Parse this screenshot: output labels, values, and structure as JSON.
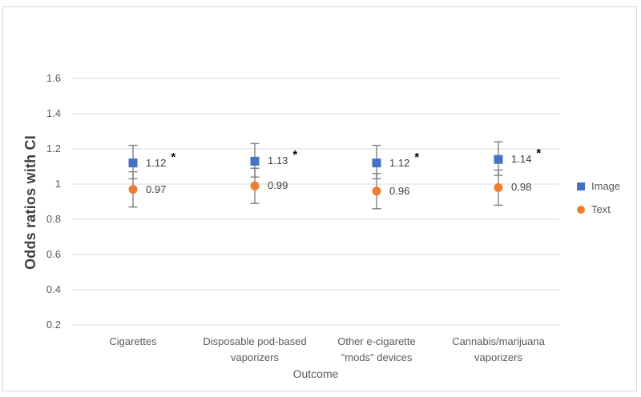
{
  "chart_data": {
    "type": "scatter",
    "title": "",
    "xlabel": "Outcome",
    "ylabel": "Odds ratios with CI",
    "categories": [
      "Cigarettes",
      "Disposable pod-based\nvaporizers",
      "Other e-cigarette\n\"mods\" devices",
      "Cannabis/marijuana\nvaporizers"
    ],
    "y_ticks": [
      {
        "label": "1.6",
        "value": 1.6
      },
      {
        "label": "1.4",
        "value": 1.4
      },
      {
        "label": "1.2",
        "value": 1.2
      },
      {
        "label": "1",
        "value": 1.0
      },
      {
        "label": "0.8",
        "value": 0.8
      },
      {
        "label": "0.6",
        "value": 0.6
      },
      {
        "label": "0.4",
        "value": 0.4
      },
      {
        "label": "0.2",
        "value": 0.2
      }
    ],
    "ylim": [
      0.2,
      1.6
    ],
    "grid": true,
    "legend_position": "right",
    "significance_marker": "*",
    "series": [
      {
        "name": "Image",
        "marker": "square",
        "color": "#4472C4",
        "points": [
          {
            "category": "Cigarettes",
            "value": 1.12,
            "label": "1.12",
            "ci_low": 1.03,
            "ci_high": 1.22,
            "significant": true
          },
          {
            "category": "Disposable pod-based vaporizers",
            "value": 1.13,
            "label": "1.13",
            "ci_low": 1.04,
            "ci_high": 1.23,
            "significant": true
          },
          {
            "category": "Other e-cigarette \"mods\" devices",
            "value": 1.12,
            "label": "1.12",
            "ci_low": 1.03,
            "ci_high": 1.22,
            "significant": true
          },
          {
            "category": "Cannabis/marijuana vaporizers",
            "value": 1.14,
            "label": "1.14",
            "ci_low": 1.05,
            "ci_high": 1.24,
            "significant": true
          }
        ]
      },
      {
        "name": "Text",
        "marker": "circle",
        "color": "#ED7D31",
        "points": [
          {
            "category": "Cigarettes",
            "value": 0.97,
            "label": "0.97",
            "ci_low": 0.87,
            "ci_high": 1.07,
            "significant": false
          },
          {
            "category": "Disposable pod-based vaporizers",
            "value": 0.99,
            "label": "0.99",
            "ci_low": 0.89,
            "ci_high": 1.09,
            "significant": false
          },
          {
            "category": "Other e-cigarette \"mods\" devices",
            "value": 0.96,
            "label": "0.96",
            "ci_low": 0.86,
            "ci_high": 1.06,
            "significant": false
          },
          {
            "category": "Cannabis/marijuana vaporizers",
            "value": 0.98,
            "label": "0.98",
            "ci_low": 0.88,
            "ci_high": 1.08,
            "significant": false
          }
        ]
      }
    ],
    "legend": [
      {
        "label": "Image",
        "marker": "square",
        "color": "#4472C4"
      },
      {
        "label": "Text",
        "marker": "circle",
        "color": "#ED7D31"
      }
    ],
    "colors": {
      "gridline": "#D9D9D9",
      "error_bar": "#7F7F7F",
      "axis_text": "#595959",
      "data_label_text": "#404040",
      "frame_border": "#D9D9D9",
      "background": "#FFFFFF",
      "significance": "#000000"
    }
  }
}
